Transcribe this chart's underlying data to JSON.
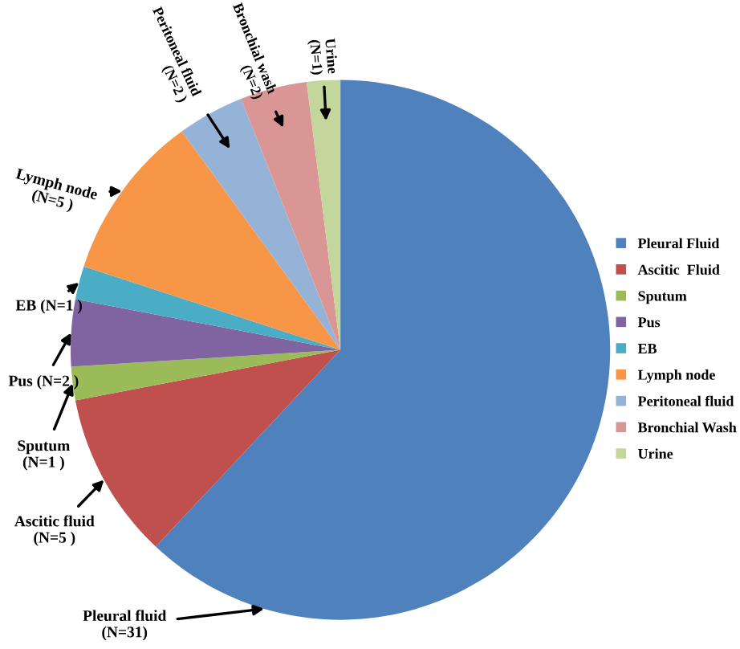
{
  "chart_data": {
    "type": "pie",
    "categories": [
      "Pleural Fluid",
      "Ascitic  Fluid",
      "Sputum",
      "Pus",
      "EB",
      "Lymph node",
      "Peritoneal fluid",
      "Bronchial Wash",
      "Urine"
    ],
    "values": [
      62,
      10,
      2,
      4,
      2,
      10,
      4,
      4,
      2
    ],
    "colors": [
      "#4f81bd",
      "#c0504d",
      "#9bbb59",
      "#8064a2",
      "#4bacc6",
      "#f79646",
      "#95b3d7",
      "#d99694",
      "#c3d69b"
    ],
    "annotations": [
      "Pleural fluid\n(N=31)",
      "Ascitic fluid\n(N=5 )",
      "Sputum\n(N=1 )",
      "Pus (N=2 )",
      "EB (N=1 )",
      "Lymph node\n(N=5 )",
      "Peritoneal fluid\n(N=2 )",
      "Bronchial wash\n(N=2)",
      "Urine\n(N=1)"
    ],
    "legend": "right"
  }
}
